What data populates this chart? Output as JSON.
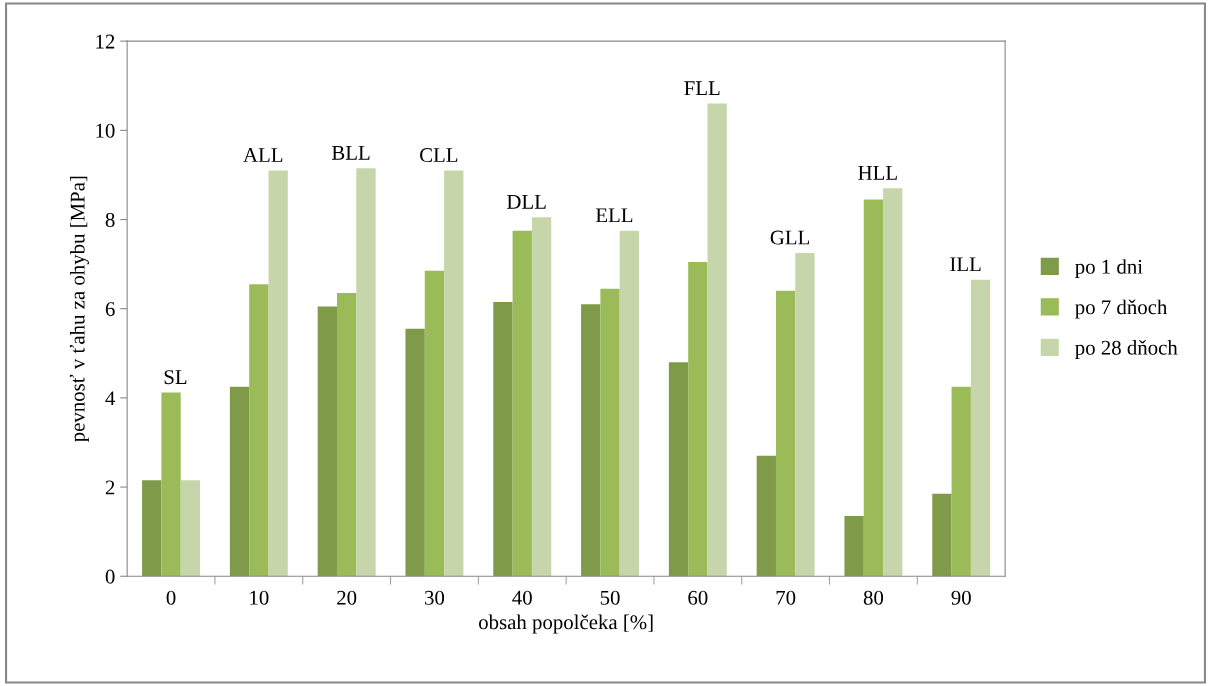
{
  "chart_data": {
    "type": "bar",
    "xlabel": "obsah popolčeka [%]",
    "ylabel": "pevnosť v ťahu za ohybu [MPa]",
    "categories": [
      "0",
      "10",
      "20",
      "30",
      "40",
      "50",
      "60",
      "70",
      "80",
      "90"
    ],
    "series": [
      {
        "name": "po 1 dni",
        "color": "#7f9a48",
        "values": [
          2.15,
          4.25,
          6.05,
          5.55,
          6.15,
          6.1,
          4.8,
          2.7,
          1.35,
          1.85
        ]
      },
      {
        "name": "po 7 dňoch",
        "color": "#9bbb59",
        "values": [
          4.12,
          6.55,
          6.35,
          6.85,
          7.75,
          6.45,
          7.05,
          6.4,
          8.45,
          4.25
        ]
      },
      {
        "name": "po 28 dňoch",
        "color": "#c6d6aa",
        "values": [
          2.15,
          9.1,
          9.15,
          9.1,
          8.05,
          7.75,
          10.6,
          7.25,
          8.7,
          6.65
        ]
      }
    ],
    "annotations": [
      "SL",
      "ALL",
      "BLL",
      "CLL",
      "DLL",
      "ELL",
      "FLL",
      "GLL",
      "HLL",
      "ILL"
    ],
    "ylim": [
      0,
      12
    ],
    "yticks": [
      0,
      2,
      4,
      6,
      8,
      10,
      12
    ],
    "grid": false,
    "legend": "right"
  }
}
